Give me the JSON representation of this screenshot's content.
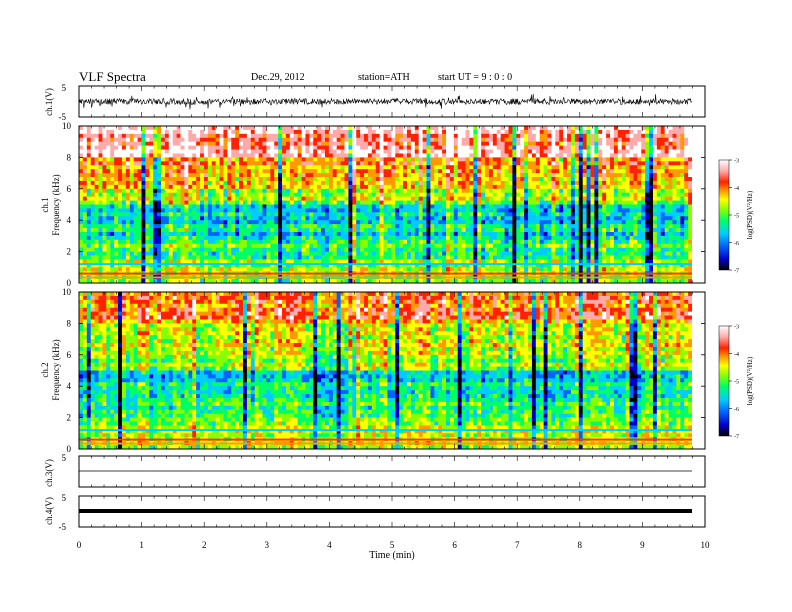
{
  "header": {
    "title": "VLF  Spectra",
    "date": "Dec.29, 2012",
    "station": "station=ATH",
    "start": "start  UT =  9 : 0 : 0"
  },
  "chart_data": [
    {
      "type": "line",
      "panel": "ch1-waveform",
      "ylabel": "ch.1(V)",
      "yticks": [
        "5",
        "-5"
      ],
      "ylim": [
        -5,
        5
      ],
      "xlim": [
        0,
        9.8
      ]
    },
    {
      "type": "heatmap",
      "panel": "ch1-spectrogram",
      "ylabel_top": "ch.1",
      "ylabel": "Frequency  (kHz)",
      "yticks": [
        "0",
        "2",
        "4",
        "6",
        "8",
        "10"
      ],
      "ylim": [
        0,
        10
      ],
      "colorbar": {
        "label": "log(PSD)(V²/Hz)",
        "ticks": [
          "-3",
          "-4",
          "-5",
          "-6",
          "-7"
        ],
        "range": [
          -7,
          -3
        ],
        "colors": [
          "#000000",
          "#0000cc",
          "#0066ff",
          "#00ccff",
          "#00ff66",
          "#88ff00",
          "#ffff00",
          "#ff9900",
          "#ff2200",
          "#ffaaaa",
          "#ffffff"
        ]
      }
    },
    {
      "type": "heatmap",
      "panel": "ch2-spectrogram",
      "ylabel_top": "ch.2",
      "ylabel": "Frequency  (kHz)",
      "yticks": [
        "0",
        "2",
        "4",
        "6",
        "8",
        "10"
      ],
      "ylim": [
        0,
        10
      ],
      "colorbar": {
        "label": "log(PSD)(V²/Hz)",
        "ticks": [
          "-3",
          "-4",
          "-5",
          "-6",
          "-7"
        ],
        "range": [
          -7,
          -3
        ]
      }
    },
    {
      "type": "line",
      "panel": "ch3-waveform",
      "ylabel": "ch.3(V)",
      "yticks": [
        "5",
        "-5"
      ],
      "ylim": [
        -5,
        5
      ]
    },
    {
      "type": "line",
      "panel": "ch4-waveform",
      "ylabel": "ch.4(V)",
      "yticks": [
        "5",
        "-5"
      ],
      "ylim": [
        -5,
        5
      ]
    },
    {
      "panel": "x-axis",
      "xlabel": "Time  (min)",
      "xticks": [
        "0",
        "1",
        "2",
        "3",
        "4",
        "5",
        "6",
        "7",
        "8",
        "9",
        "10"
      ],
      "xlim": [
        0,
        10
      ],
      "data_end": 9.8
    }
  ]
}
